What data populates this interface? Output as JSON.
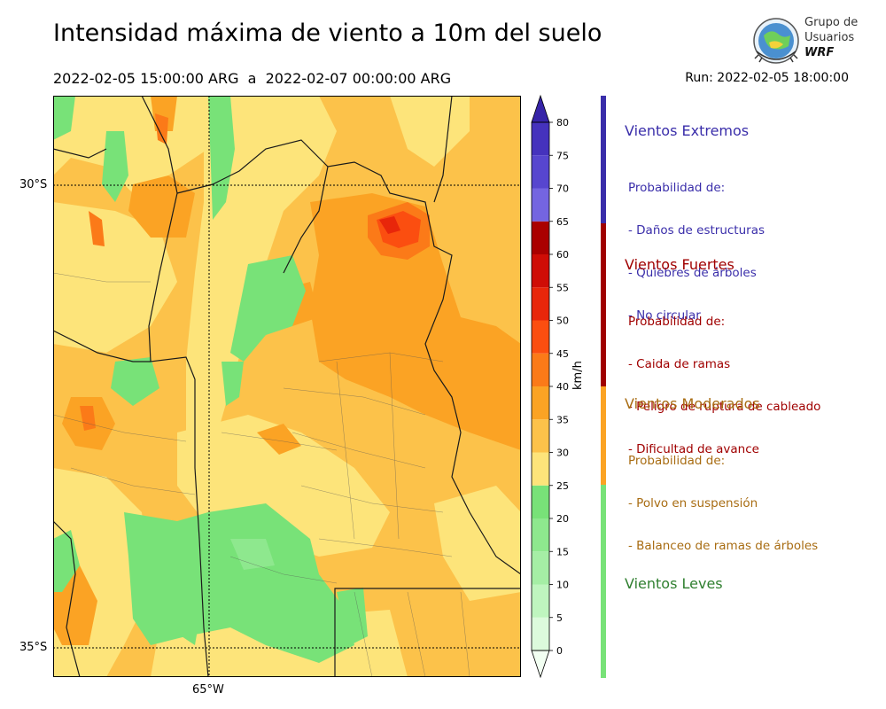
{
  "header": {
    "title": "Intensidad máxima de viento a 10m del suelo",
    "period": "2022-02-05 15:00:00 ARG  a  2022-02-07 00:00:00 ARG",
    "run": "Run: 2022-02-05 18:00:00"
  },
  "logo": {
    "line1": "Grupo de",
    "line2": "Usuarios",
    "line3": "WRF"
  },
  "map": {
    "lat_labels": [
      "30°S",
      "35°S"
    ],
    "lon_labels": [
      "65°W"
    ]
  },
  "colorbar": {
    "units": "km/h",
    "ticks": [
      "0",
      "5",
      "10",
      "15",
      "20",
      "25",
      "30",
      "35",
      "40",
      "45",
      "50",
      "55",
      "60",
      "65",
      "70",
      "75",
      "80"
    ],
    "colors": [
      "#f2fff2",
      "#dcfadc",
      "#bff5bf",
      "#a5eea5",
      "#8ee88e",
      "#78e278",
      "#fde47a",
      "#fcc24a",
      "#fba324",
      "#fb7a18",
      "#fb4e10",
      "#e8260a",
      "#cf0d06",
      "#aa0000",
      "#7465e0",
      "#5746cf",
      "#4532bd",
      "#3624a8"
    ]
  },
  "categories": [
    {
      "title": "Vientos Extremos",
      "color": "#3a2eaa",
      "lines": [
        "Probabilidad de:",
        "- Daños de estructuras",
        "- Quiebres de árboles",
        "- No circular"
      ]
    },
    {
      "title": "Vientos Fuertes",
      "color": "#a00000",
      "lines": [
        "Probabilidad de:",
        "- Caida de ramas",
        "- Peligro de ruptura de cableado",
        "- Dificultad de avance"
      ]
    },
    {
      "title": "Vientos Moderados",
      "color": "#a86c12",
      "lines": [
        "Probabilidad de:",
        "- Polvo en suspensión",
        "- Balanceo de ramas de árboles"
      ]
    },
    {
      "title": "Vientos Leves",
      "color": "#2f7f2f",
      "lines": []
    }
  ]
}
